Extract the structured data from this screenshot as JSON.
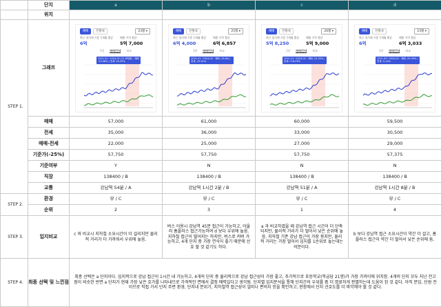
{
  "steps": {
    "s1": "STEP 1.",
    "s2": "STEP 2.",
    "s3": "STEP 3.",
    "s4": "STEP 4."
  },
  "labels": {
    "complex": "단지",
    "location": "위치",
    "graph": "그래프",
    "sale": "매매",
    "jeonse": "전세",
    "gap": "매매-전세",
    "bid": "기준가(-25%)",
    "qualify": "기준여부",
    "commute": "직장",
    "transport": "교통",
    "environment": "환경",
    "rank": "순위",
    "location_compare": "입지비교",
    "final": "최종 선택 및 느낀점"
  },
  "colors": {
    "header": "#145a68",
    "accent": "#3a55d9",
    "sale_line": "#2b3ccf",
    "jeonse_line": "#2f9a2f"
  },
  "complexes": [
    {
      "name": "a",
      "sale": "57,000",
      "jeonse": "35,000",
      "gap": "22,000",
      "bid": "57,750",
      "qualify": "Y",
      "commute": "138400 / B",
      "transport": "강남역 54분 / A",
      "environment": "무 / C",
      "rank": "2",
      "compare": "c 와 비교시 지하철 소요시간이 더 걸리지만 물리적 거리가 더 가까워서 우위에 놓음.",
      "card": {
        "tab_on": "매매",
        "tab_off": "전월세",
        "area": "23평",
        "avg_label": "최근 실거래 기준 1개월 평균",
        "avg_value": "6억",
        "cur_label": "매물 가격 평균",
        "cur_value": "5억 7,000",
        "sub_tabs": [
          "1년",
          "매매/전세",
          "비교"
        ],
        "tip": "2021.01~2024.02 (21.6억원) · 매매 -23.08% / 전세 +6.25%"
      }
    },
    {
      "name": "b",
      "sale": "61,000",
      "jeonse": "36,000",
      "gap": "25,000",
      "bid": "57,750",
      "qualify": "N",
      "commute": "138400 / B",
      "transport": "강남역 1시간 2분 / B",
      "environment": "무 / C",
      "rank": "3",
      "compare": "버스 이용시 강남역 45분 접근이 가능하고, 아울러 홈플러스 접근가능하여 d 보다 우위에 놓음. 지하철 접근이 떨어지는 하지만, 버스로 커버 가능하고, 4개 단지 중 가장 연식이 좋기 때문에 선호 할 것 같기도 하다.",
      "card": {
        "tab_on": "매매",
        "tab_off": "전월세",
        "area": "25평",
        "avg_label": "최근 실거래 기준 1개월 평균",
        "avg_value": "6억 4,000",
        "cur_label": "매물 가격 평균",
        "cur_value": "6억 6,857",
        "sub_tabs": [
          "1년",
          "매매/전세",
          "비교"
        ],
        "tip": "2021.01~2024.02 · 매매 -19.6% / 전세 -15.91%"
      }
    },
    {
      "name": "c",
      "sale": "60,000",
      "jeonse": "33,000",
      "gap": "27,000",
      "bid": "57,750",
      "qualify": "N",
      "commute": "138400 / B",
      "transport": "강남역 51분 / A",
      "environment": "무 / C",
      "rank": "1",
      "compare": "a 과 비교하였을 때 강남역 접근 시간이 더 단축되지만, 물리적 거리가 더 멀어서 낮은 순위에 놓음. 지하철 기준 강남 접근이 가장 용지만, 물리적 거리는 가장 멀어서 입지를 1순위로 놓는데는 의문이다.",
      "card": {
        "tab_on": "매매",
        "tab_off": "전월세",
        "area": "26평",
        "avg_label": "최근 실거래 기준 1개월 평균",
        "avg_value": "5억 8,250",
        "cur_label": "매물 가격 평균",
        "cur_value": "5억 9,000",
        "sub_tabs": [
          "1년",
          "매매/전세",
          "비교"
        ],
        "tip": "2021.01~2024.02 · 매매 -24.55% / 전세 +16.33%"
      }
    },
    {
      "name": "d",
      "sale": "59,500",
      "jeonse": "30,500",
      "gap": "29,000",
      "bid": "57,375",
      "qualify": "N",
      "commute": "138400 / B",
      "transport": "강남역 1시간 8분 / B",
      "environment": "무 / C",
      "rank": "4",
      "compare": "b 보다 강남역 접근 소요시간이 약간 더 걸고, 홈플러스 접근이 약간 더 멀어서 낮은 순위에 둠.",
      "card": {
        "tab_on": "매매",
        "tab_off": "전월세",
        "area": "23평",
        "avg_label": "최근 실거래 기준 1개월 평균",
        "avg_value": "6억",
        "cur_label": "매물 가격 평균",
        "cur_value": "6억 3,033",
        "sub_tabs": [
          "1년",
          "매매/전세",
          "비교"
        ],
        "tip": "2021.09~2024.02 · 매매 -25.49% / 전세 -5.14%"
      }
    }
  ],
  "final_text": "최종 선택은 a 단지이다. 입지적으로 강남 접근이 1시간 내 가능하고, 4개의 단지 중 물리적으로 강남 접근성이 가장 좋고, 추가적으로 초등학교(학급당 21명)가 가장 가까이에 위치함. 4개의 단지 모두 지난 전고점이 비슷한 반면 a 단지가 현재 가장 낮은 호가를 나타내므로 가격적인 면에서 결정 매력있다고 생각됨. 단지별 입지분석을 통해 단지간의 우위를 좀 더 명료하게 판별하는데 도움이 된 것 같다. 아직 분임, 단원 전이므로 직접 가서 단지 주변 환경, 단지내 분위기, 지하철역 접근성이 얼마나 편의지 등을 확인하고, 현장에서 단지 선호도를 더 파악해야 할 것 같다."
}
